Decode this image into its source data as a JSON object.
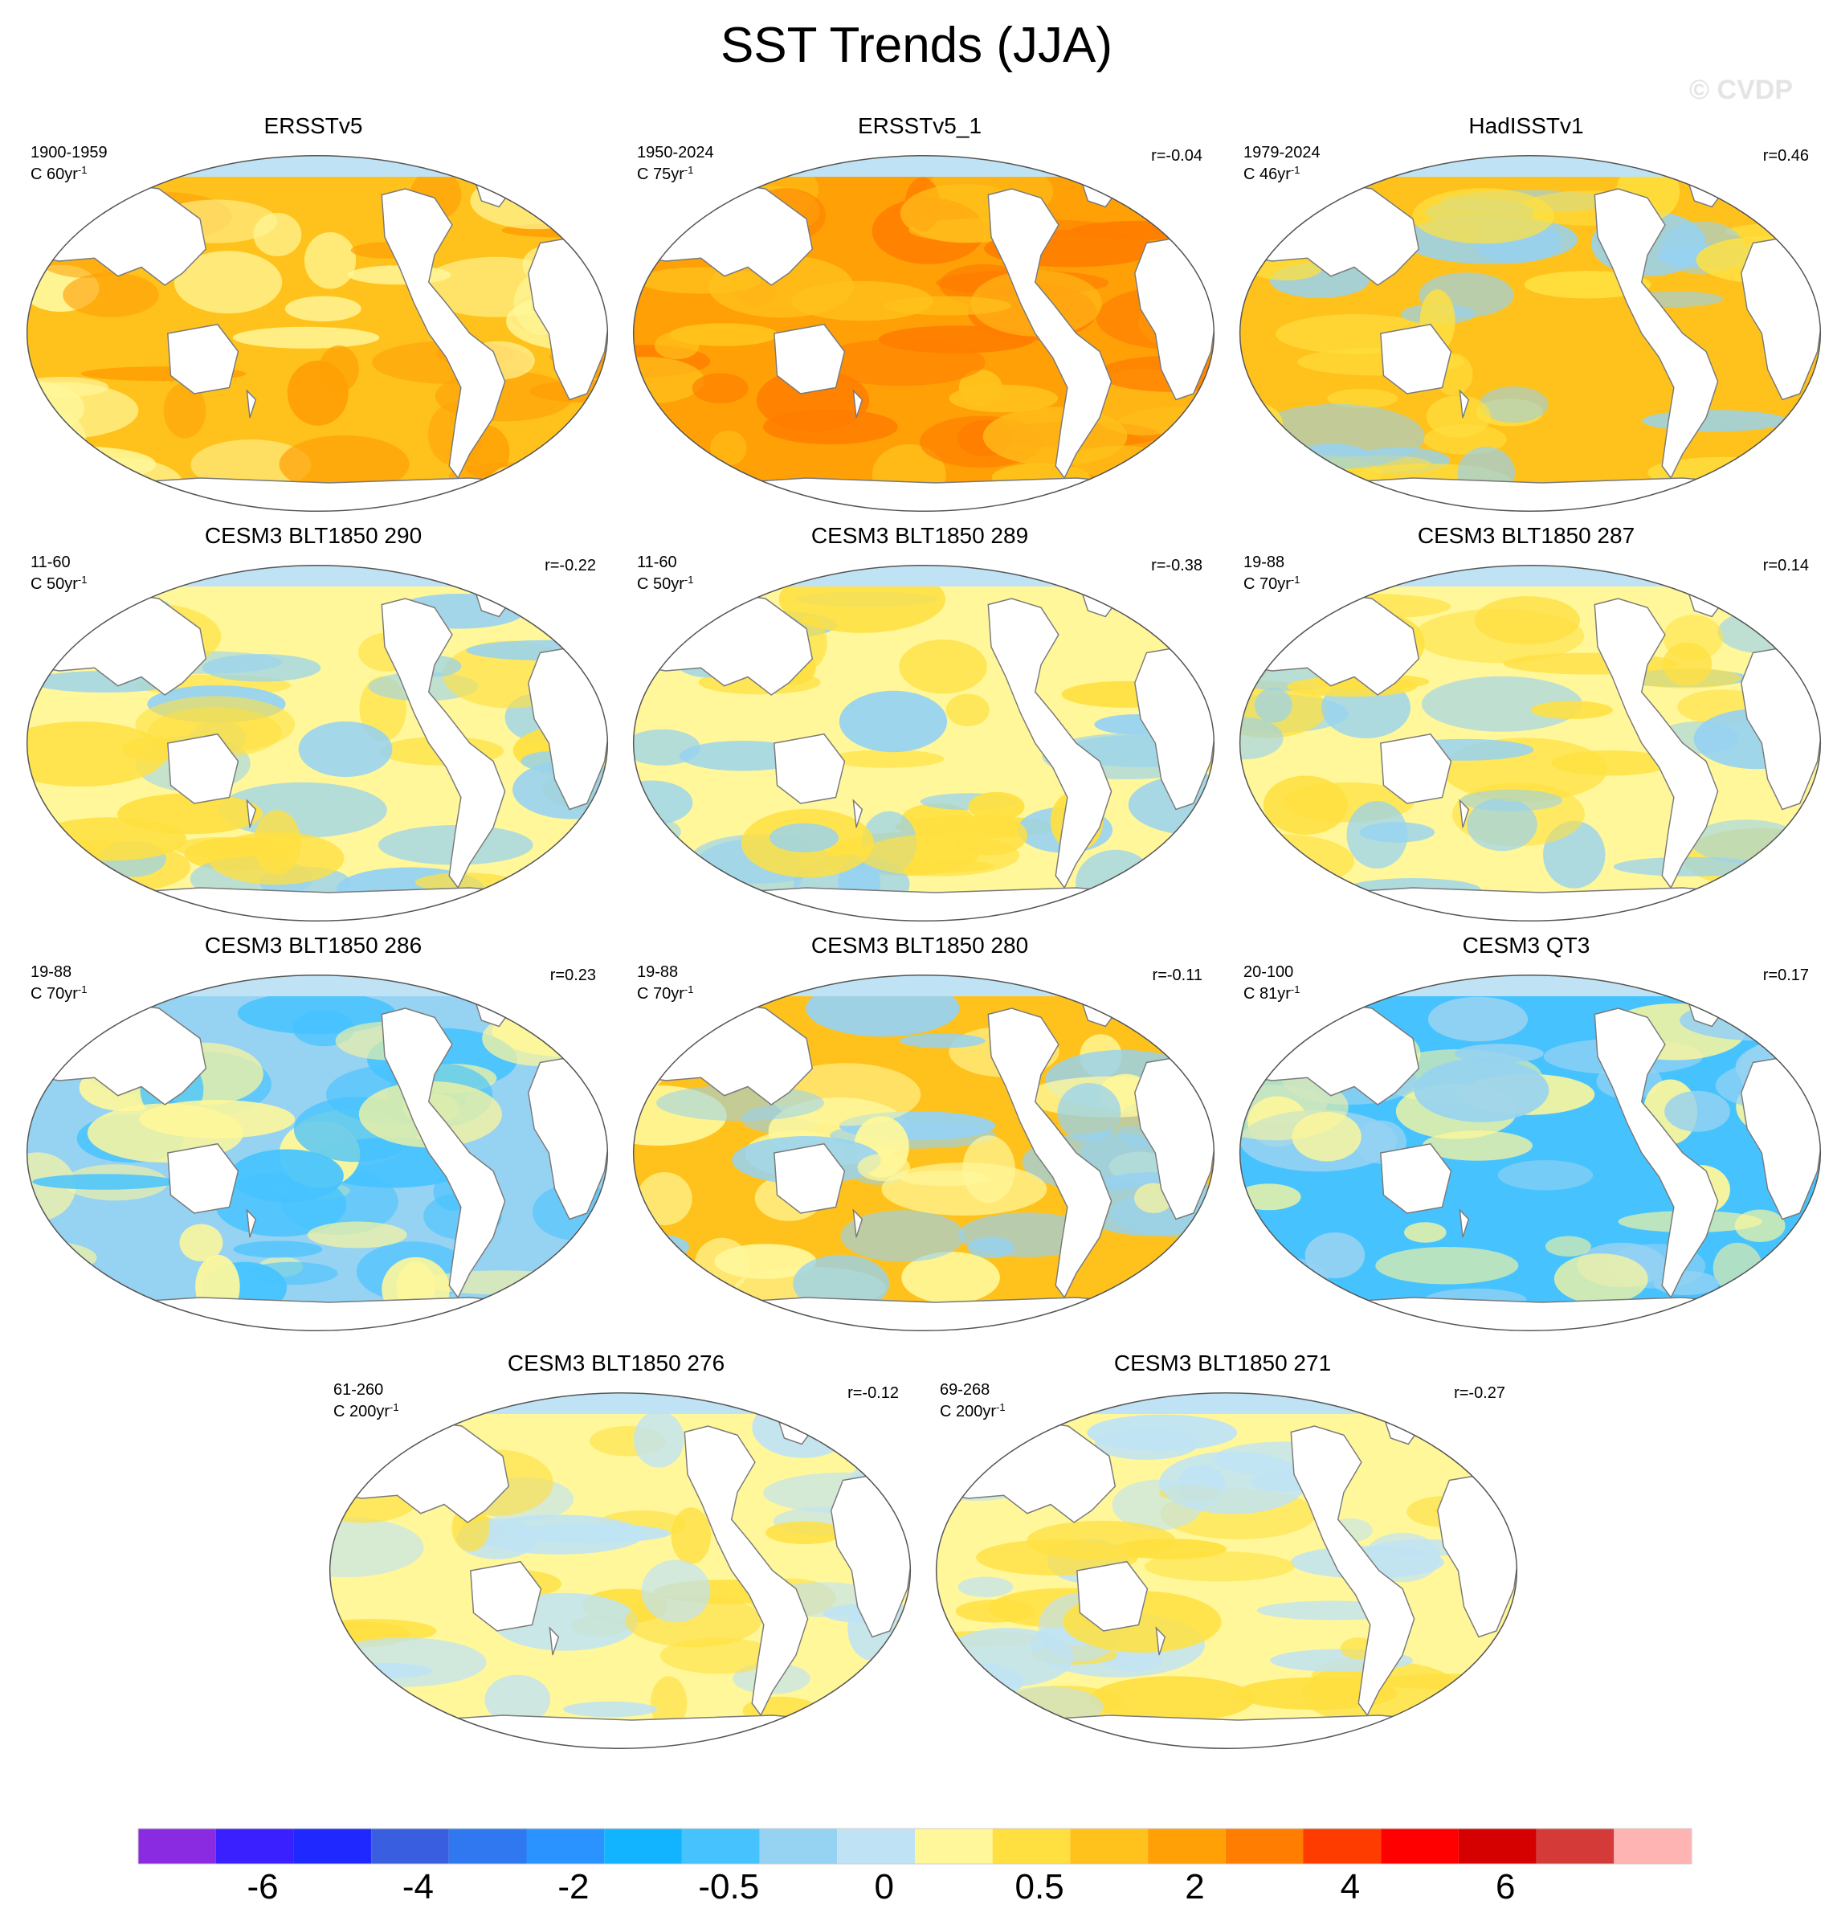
{
  "title": "SST Trends (JJA)",
  "watermark": "© CVDP",
  "panels": [
    {
      "title": "ERSSTv5",
      "years": "1900-1959",
      "count": "C 60yr",
      "count_sup": "-1",
      "r": "",
      "style": "warm_obs"
    },
    {
      "title": "ERSSTv5_1",
      "years": "1950-2024",
      "count": "C 75yr",
      "count_sup": "-1",
      "r": "r=-0.04",
      "style": "warm_strong"
    },
    {
      "title": "HadISSTv1",
      "years": "1979-2024",
      "count": "C 46yr",
      "count_sup": "-1",
      "r": "r=0.46",
      "style": "warm_mixed"
    },
    {
      "title": "CESM3 BLT1850 290",
      "years": "11-60",
      "count": "C 50yr",
      "count_sup": "-1",
      "r": "r=-0.22",
      "style": "mixed"
    },
    {
      "title": "CESM3 BLT1850 289",
      "years": "11-60",
      "count": "C 50yr",
      "count_sup": "-1",
      "r": "r=-0.38",
      "style": "mixed_cool"
    },
    {
      "title": "CESM3 BLT1850 287",
      "years": "19-88",
      "count": "C 70yr",
      "count_sup": "-1",
      "r": "r=0.14",
      "style": "mixed"
    },
    {
      "title": "CESM3 BLT1850 286",
      "years": "19-88",
      "count": "C 70yr",
      "count_sup": "-1",
      "r": "r=0.23",
      "style": "cool"
    },
    {
      "title": "CESM3 BLT1850 280",
      "years": "19-88",
      "count": "C 70yr",
      "count_sup": "-1",
      "r": "r=-0.11",
      "style": "warm_model"
    },
    {
      "title": "CESM3 QT3",
      "years": "20-100",
      "count": "C 81yr",
      "count_sup": "-1",
      "r": "r=0.17",
      "style": "cool_strong"
    },
    {
      "title": "CESM3 BLT1850 276",
      "years": "61-260",
      "count": "C 200yr",
      "count_sup": "-1",
      "r": "r=-0.12",
      "style": "weak"
    },
    {
      "title": "CESM3 BLT1850 271",
      "years": "69-268",
      "count": "C 200yr",
      "count_sup": "-1",
      "r": "r=-0.27",
      "style": "weak"
    }
  ],
  "colorbar": {
    "colors": [
      "#8a2be2",
      "#3a1fff",
      "#1e28ff",
      "#3a5ee0",
      "#2f78f0",
      "#2a93ff",
      "#12b4ff",
      "#46c3ff",
      "#96d2f2",
      "#bfe3f5",
      "#fff79a",
      "#ffe040",
      "#ffc21c",
      "#ffa006",
      "#ff7d00",
      "#ff3c00",
      "#ff0000",
      "#d50000",
      "#d43a38",
      "#ffb4b4"
    ],
    "labels": [
      "-6",
      "-4",
      "-2",
      "-0.5",
      "0",
      "0.5",
      "2",
      "4",
      "6"
    ]
  },
  "ocean_palette": {
    "land": "#ffffff",
    "coast": "#7a7a7a",
    "warm_obs": [
      "#ffc21c",
      "#ffa006",
      "#fff79a"
    ],
    "warm_strong": [
      "#ffa006",
      "#ffc21c",
      "#ff7d00"
    ],
    "warm_mixed": [
      "#ffc21c",
      "#ffe040",
      "#96d2f2"
    ],
    "mixed": [
      "#fff79a",
      "#ffe040",
      "#96d2f2"
    ],
    "mixed_cool": [
      "#fff79a",
      "#96d2f2",
      "#ffe040"
    ],
    "cool": [
      "#96d2f2",
      "#fff79a",
      "#46c3ff"
    ],
    "warm_model": [
      "#ffc21c",
      "#fff79a",
      "#96d2f2"
    ],
    "cool_strong": [
      "#46c3ff",
      "#96d2f2",
      "#fff79a"
    ],
    "weak": [
      "#fff79a",
      "#ffe040",
      "#bfe3f5"
    ]
  }
}
